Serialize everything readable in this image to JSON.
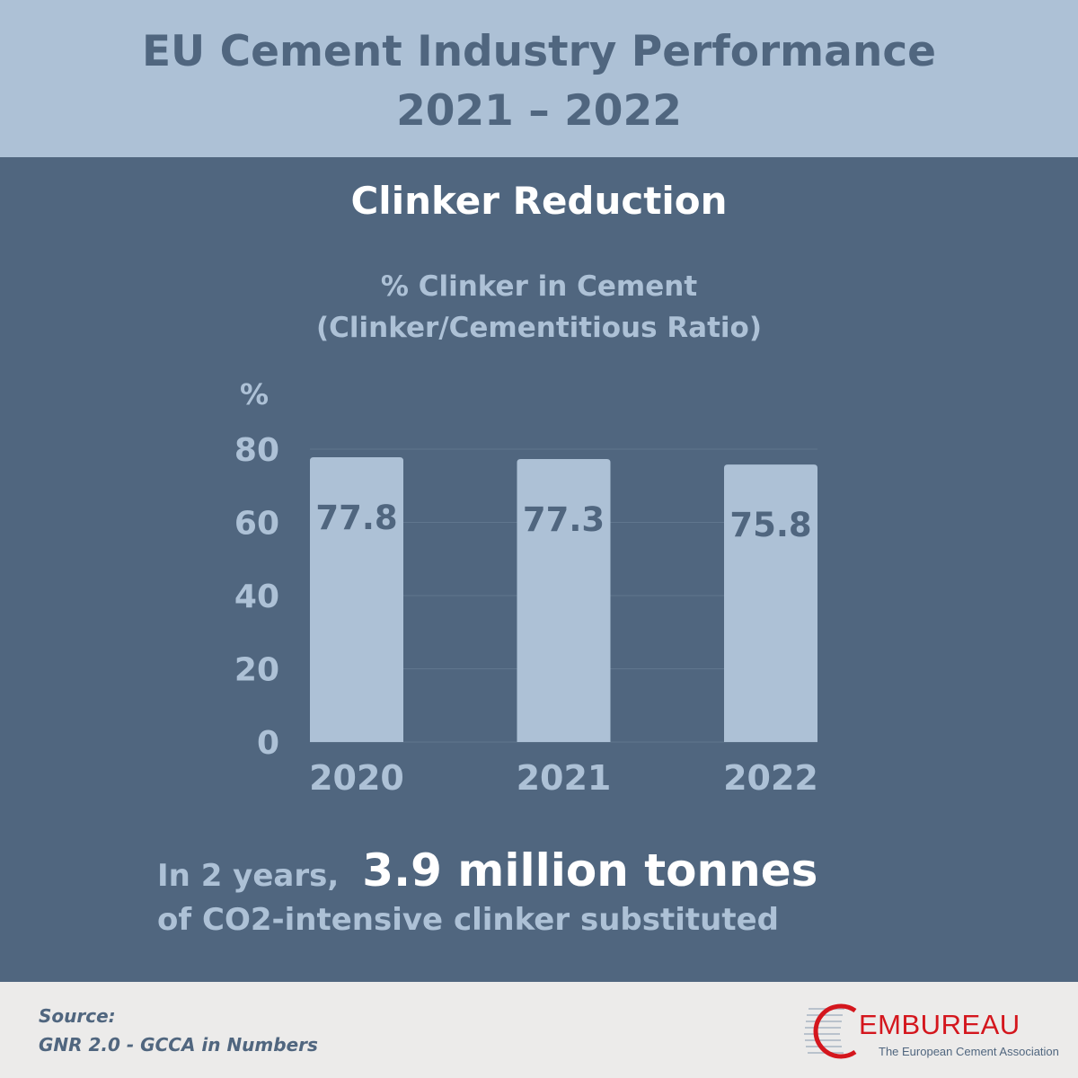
{
  "header": {
    "title_line1": "EU Cement Industry Performance",
    "title_line2": "2021 – 2022"
  },
  "section_title": "Clinker Reduction",
  "chart_data": {
    "type": "bar",
    "title": "% Clinker in Cement",
    "subtitle": "(Clinker/Cementitious Ratio)",
    "ylabel": "%",
    "xlabel": "",
    "categories": [
      "2020",
      "2021",
      "2022"
    ],
    "values": [
      77.8,
      77.3,
      75.8
    ],
    "data_labels": [
      "77.8",
      "77.3",
      "75.8"
    ],
    "ylim": [
      0,
      80
    ],
    "yticks": [
      0,
      20,
      40,
      60,
      80
    ],
    "grid": true,
    "colors": {
      "bar": "#adc1d6",
      "label": "#50667f",
      "axis_text": "#adc1d6",
      "grid": "#60768e"
    }
  },
  "summary": {
    "prefix": "In 2 years,",
    "highlight": "3.9 million tonnes",
    "suffix": "of CO2-intensive clinker substituted"
  },
  "footer": {
    "source_label": "Source:",
    "source_text": "GNR 2.0 - GCCA in Numbers",
    "logo_text": "EMBUREAU",
    "logo_tagline": "The European Cement Association"
  }
}
